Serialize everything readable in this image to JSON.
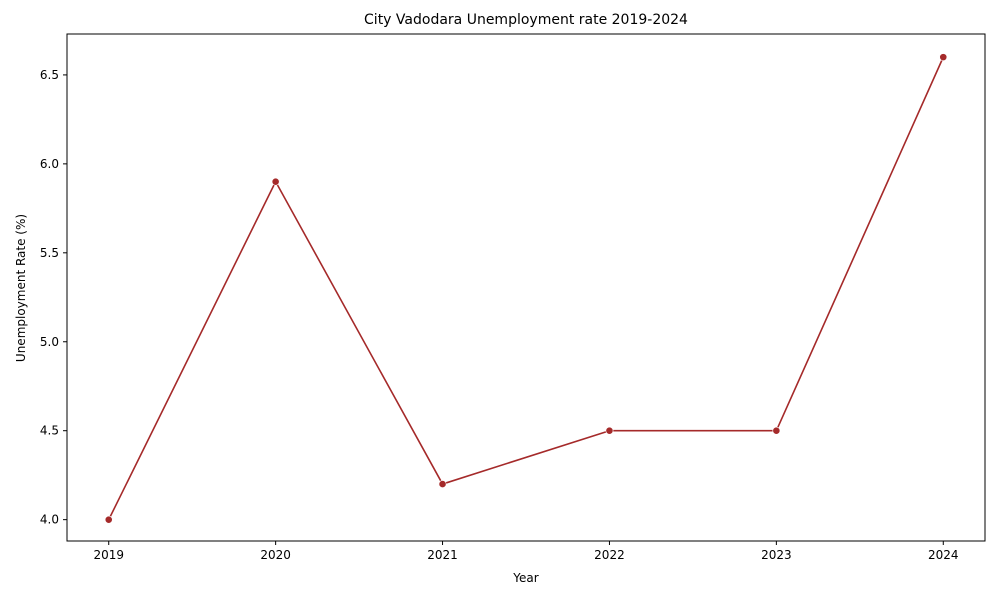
{
  "chart_data": {
    "type": "line",
    "title": "City Vadodara Unemployment rate 2019-2024",
    "xlabel": "Year",
    "ylabel": "Unemployment Rate (%)",
    "x": [
      "2019",
      "2020",
      "2021",
      "2022",
      "2023",
      "2024"
    ],
    "series": [
      {
        "values": [
          4.0,
          5.9,
          4.2,
          4.5,
          4.5,
          6.6
        ],
        "color": "#a52a2a"
      }
    ],
    "ylim": [
      3.88,
      6.73
    ],
    "yticks": [
      "4.0",
      "4.5",
      "5.0",
      "5.5",
      "6.0",
      "6.5"
    ],
    "grid": false,
    "legend": "none",
    "markers": true
  }
}
